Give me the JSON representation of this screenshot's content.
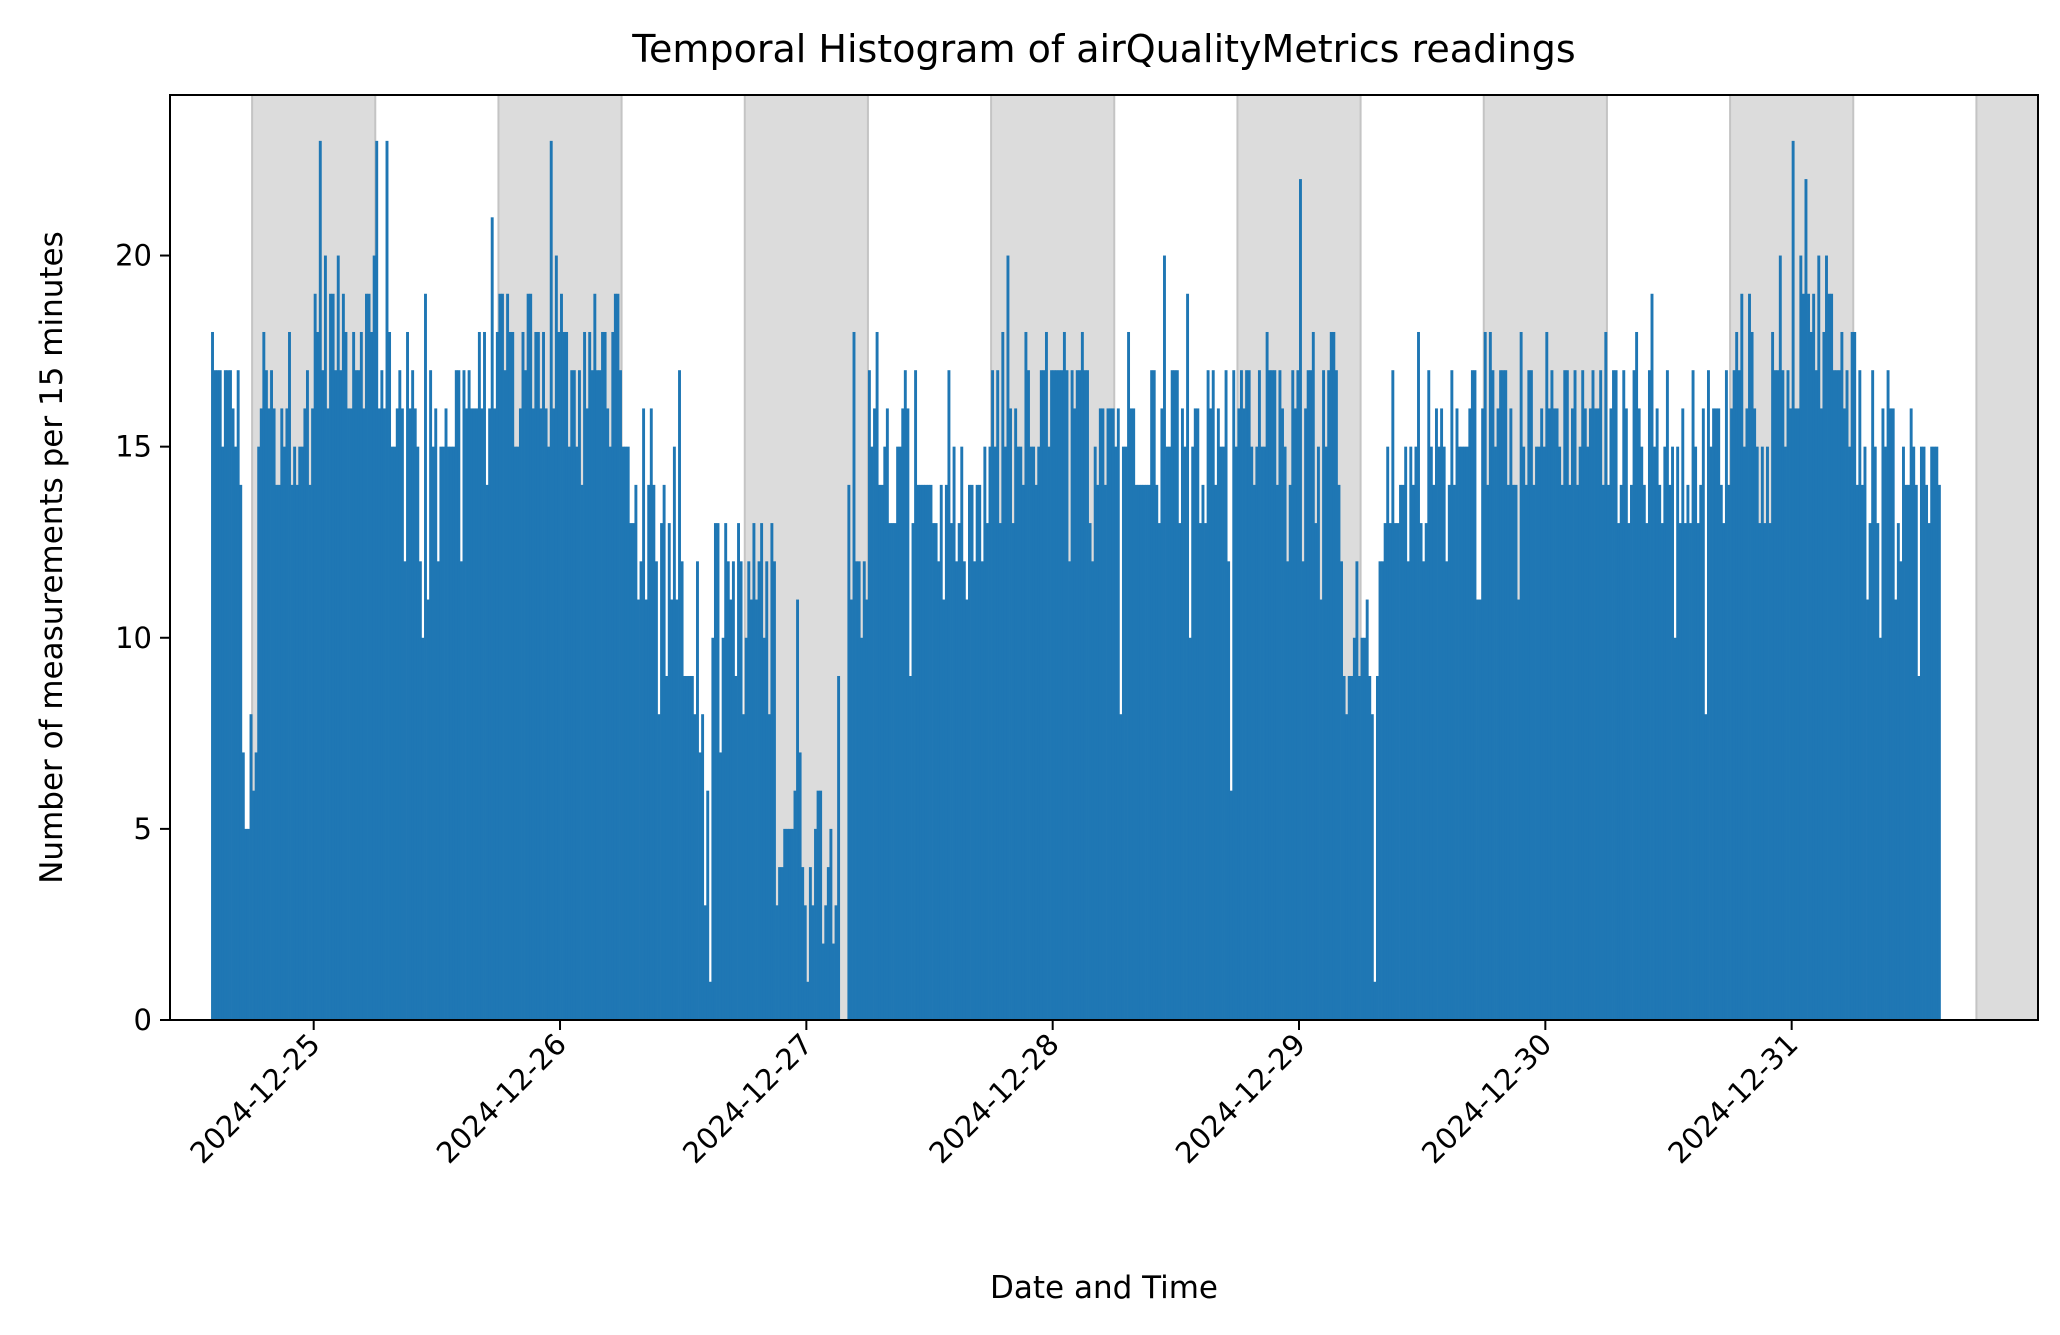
{
  "chart_data": {
    "type": "bar",
    "title": "Temporal Histogram of airQualityMetrics readings",
    "xlabel": "Date and Time",
    "ylabel": "Number of measurements per 15 minutes",
    "bin_minutes": 15,
    "x_range": [
      "2024-12-24T10:00",
      "2025-01-01T00:00"
    ],
    "ylim": [
      0,
      24.2
    ],
    "y_ticks": [
      0,
      5,
      10,
      15,
      20
    ],
    "x_ticks": [
      "2024-12-25",
      "2024-12-26",
      "2024-12-27",
      "2024-12-28",
      "2024-12-29",
      "2024-12-30",
      "2024-12-31"
    ],
    "bar_color": "#1f77b4",
    "shade_color": "#dcdcdc",
    "grid": false,
    "night_bands": [
      [
        "2024-12-24T18:00",
        "2024-12-25T06:00"
      ],
      [
        "2024-12-25T18:00",
        "2024-12-26T06:00"
      ],
      [
        "2024-12-26T18:00",
        "2024-12-27T06:00"
      ],
      [
        "2024-12-27T18:00",
        "2024-12-28T06:00"
      ],
      [
        "2024-12-28T18:00",
        "2024-12-29T06:00"
      ],
      [
        "2024-12-29T18:00",
        "2024-12-30T06:00"
      ],
      [
        "2024-12-30T18:00",
        "2024-12-31T06:00"
      ],
      [
        "2024-12-31T18:00",
        "2025-01-01T00:00"
      ]
    ],
    "segments": [
      {
        "start": "2024-12-24T14:00",
        "end": "2024-12-24T17:00",
        "value": 16
      },
      {
        "start": "2024-12-24T17:00",
        "end": "2024-12-24T18:30",
        "value": 6
      },
      {
        "start": "2024-12-24T18:30",
        "end": "2024-12-25T00:00",
        "value": 16
      },
      {
        "start": "2024-12-25T00:00",
        "end": "2024-12-25T06:00",
        "value": 18
      },
      {
        "start": "2024-12-25T06:00",
        "end": "2024-12-25T12:00",
        "value": 16
      },
      {
        "start": "2024-12-25T12:00",
        "end": "2024-12-25T18:00",
        "value": 16
      },
      {
        "start": "2024-12-25T18:00",
        "end": "2024-12-26T00:00",
        "value": 17
      },
      {
        "start": "2024-12-26T00:00",
        "end": "2024-12-26T06:00",
        "value": 17
      },
      {
        "start": "2024-12-26T06:00",
        "end": "2024-12-26T09:00",
        "value": 14
      },
      {
        "start": "2024-12-26T09:00",
        "end": "2024-12-26T12:00",
        "value": 13
      },
      {
        "start": "2024-12-26T12:00",
        "end": "2024-12-26T15:00",
        "value": 8
      },
      {
        "start": "2024-12-26T15:00",
        "end": "2024-12-26T18:00",
        "value": 11
      },
      {
        "start": "2024-12-26T18:00",
        "end": "2024-12-26T21:00",
        "value": 11
      },
      {
        "start": "2024-12-26T21:00",
        "end": "2024-12-27T02:00",
        "value": 5
      },
      {
        "start": "2024-12-27T02:00",
        "end": "2024-12-27T04:00",
        "value": 2
      },
      {
        "start": "2024-12-27T04:00",
        "end": "2024-12-27T06:00",
        "value": 12
      },
      {
        "start": "2024-12-27T06:00",
        "end": "2024-12-27T12:00",
        "value": 15
      },
      {
        "start": "2024-12-27T12:00",
        "end": "2024-12-27T18:00",
        "value": 13
      },
      {
        "start": "2024-12-27T18:00",
        "end": "2024-12-28T00:00",
        "value": 16
      },
      {
        "start": "2024-12-28T00:00",
        "end": "2024-12-28T06:00",
        "value": 16
      },
      {
        "start": "2024-12-28T06:00",
        "end": "2024-12-28T12:00",
        "value": 16
      },
      {
        "start": "2024-12-28T12:00",
        "end": "2024-12-28T18:00",
        "value": 15
      },
      {
        "start": "2024-12-28T18:00",
        "end": "2024-12-29T00:00",
        "value": 16
      },
      {
        "start": "2024-12-29T00:00",
        "end": "2024-12-29T04:00",
        "value": 16
      },
      {
        "start": "2024-12-29T04:00",
        "end": "2024-12-29T08:00",
        "value": 10
      },
      {
        "start": "2024-12-29T08:00",
        "end": "2024-12-29T12:00",
        "value": 14
      },
      {
        "start": "2024-12-29T12:00",
        "end": "2024-12-29T18:00",
        "value": 15
      },
      {
        "start": "2024-12-29T18:00",
        "end": "2024-12-30T00:00",
        "value": 16
      },
      {
        "start": "2024-12-30T00:00",
        "end": "2024-12-30T06:00",
        "value": 16
      },
      {
        "start": "2024-12-30T06:00",
        "end": "2024-12-30T12:00",
        "value": 15
      },
      {
        "start": "2024-12-30T12:00",
        "end": "2024-12-30T18:00",
        "value": 15
      },
      {
        "start": "2024-12-30T18:00",
        "end": "2024-12-31T00:00",
        "value": 17
      },
      {
        "start": "2024-12-31T00:00",
        "end": "2024-12-31T06:00",
        "value": 18
      },
      {
        "start": "2024-12-31T06:00",
        "end": "2024-12-31T10:00",
        "value": 15
      },
      {
        "start": "2024-12-31T10:00",
        "end": "2024-12-31T14:30",
        "value": 14
      }
    ],
    "notable_bins": [
      {
        "time": "2024-12-24T14:00",
        "value": 18
      },
      {
        "time": "2024-12-24T17:15",
        "value": 5
      },
      {
        "time": "2024-12-25T00:30",
        "value": 23
      },
      {
        "time": "2024-12-25T06:00",
        "value": 23
      },
      {
        "time": "2024-12-25T07:00",
        "value": 23
      },
      {
        "time": "2024-12-25T10:30",
        "value": 10
      },
      {
        "time": "2024-12-25T23:00",
        "value": 23
      },
      {
        "time": "2024-12-26T04:00",
        "value": 18
      },
      {
        "time": "2024-12-26T14:30",
        "value": 1
      },
      {
        "time": "2024-12-26T15:30",
        "value": 7
      },
      {
        "time": "2024-12-26T23:00",
        "value": 11
      },
      {
        "time": "2024-12-27T00:00",
        "value": 1
      },
      {
        "time": "2024-12-27T01:30",
        "value": 2
      },
      {
        "time": "2024-12-27T03:00",
        "value": 9
      },
      {
        "time": "2024-12-27T04:30",
        "value": 18
      },
      {
        "time": "2024-12-27T10:00",
        "value": 9
      },
      {
        "time": "2024-12-28T06:30",
        "value": 8
      },
      {
        "time": "2024-12-28T17:15",
        "value": 6
      },
      {
        "time": "2024-12-29T00:00",
        "value": 22
      },
      {
        "time": "2024-12-29T04:00",
        "value": 12
      },
      {
        "time": "2024-12-29T07:15",
        "value": 1
      },
      {
        "time": "2024-12-30T15:30",
        "value": 8
      },
      {
        "time": "2024-12-31T00:00",
        "value": 23
      },
      {
        "time": "2024-12-31T14:15",
        "value": 14
      }
    ]
  }
}
